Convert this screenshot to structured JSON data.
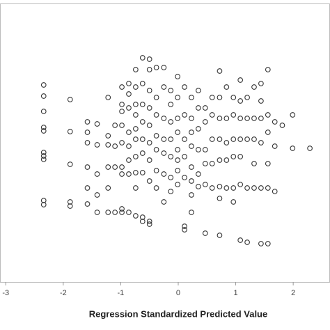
{
  "chart_data": {
    "type": "scatter",
    "x_label": "Regression Standardized Predicted Value",
    "xlim": [
      -3.1,
      2.64
    ],
    "xticks": [
      -3,
      -2,
      -1,
      0,
      1,
      2
    ],
    "ylim": [
      -4,
      4
    ],
    "color": "#333333",
    "x": [
      -2.34,
      -2.34,
      -2.34,
      -2.34,
      -2.34,
      -2.34,
      -2.34,
      -2.34,
      -2.34,
      -2.34,
      -1.88,
      -1.88,
      -1.88,
      -1.88,
      -1.88,
      -1.58,
      -1.58,
      -1.58,
      -1.58,
      -1.58,
      -1.58,
      -1.41,
      -1.41,
      -1.41,
      -1.41,
      -1.41,
      -1.22,
      -1.22,
      -1.22,
      -1.22,
      -1.22,
      -1.22,
      -1.1,
      -1.1,
      -1.1,
      -1.1,
      -0.98,
      -0.98,
      -0.98,
      -0.98,
      -0.98,
      -0.98,
      -0.98,
      -0.98,
      -0.98,
      -0.86,
      -0.86,
      -0.86,
      -0.86,
      -0.86,
      -0.86,
      -0.86,
      -0.86,
      -0.74,
      -0.74,
      -0.74,
      -0.74,
      -0.74,
      -0.74,
      -0.74,
      -0.74,
      -0.74,
      -0.74,
      -0.62,
      -0.62,
      -0.62,
      -0.62,
      -0.62,
      -0.62,
      -0.62,
      -0.62,
      -0.62,
      -0.5,
      -0.5,
      -0.5,
      -0.5,
      -0.5,
      -0.5,
      -0.5,
      -0.5,
      -0.5,
      -0.5,
      -0.38,
      -0.38,
      -0.38,
      -0.38,
      -0.38,
      -0.38,
      -0.38,
      -0.25,
      -0.25,
      -0.25,
      -0.25,
      -0.25,
      -0.25,
      -0.25,
      -0.13,
      -0.13,
      -0.13,
      -0.13,
      -0.13,
      -0.13,
      -0.13,
      -0.01,
      -0.01,
      -0.01,
      -0.01,
      -0.01,
      -0.01,
      -0.01,
      -0.01,
      0.11,
      0.11,
      0.11,
      0.11,
      0.11,
      0.11,
      0.11,
      0.23,
      0.23,
      0.23,
      0.23,
      0.23,
      0.23,
      0.23,
      0.23,
      0.35,
      0.35,
      0.35,
      0.35,
      0.35,
      0.35,
      0.47,
      0.47,
      0.47,
      0.47,
      0.47,
      0.47,
      0.59,
      0.59,
      0.59,
      0.59,
      0.59,
      0.72,
      0.72,
      0.72,
      0.72,
      0.72,
      0.72,
      0.72,
      0.72,
      0.84,
      0.84,
      0.84,
      0.84,
      0.84,
      0.96,
      0.96,
      0.96,
      0.96,
      0.96,
      0.96,
      1.08,
      1.08,
      1.08,
      1.08,
      1.08,
      1.08,
      1.08,
      1.2,
      1.2,
      1.2,
      1.2,
      1.2,
      1.32,
      1.32,
      1.32,
      1.32,
      1.32,
      1.44,
      1.44,
      1.44,
      1.44,
      1.44,
      1.44,
      1.56,
      1.56,
      1.56,
      1.56,
      1.56,
      1.56,
      1.68,
      1.68,
      1.68,
      1.81,
      1.99,
      1.99,
      2.29
    ],
    "values": [
      1.66,
      1.34,
      0.9,
      0.44,
      0.34,
      -0.28,
      -0.38,
      -0.48,
      -1.66,
      -1.78,
      1.24,
      0.32,
      -0.62,
      -1.7,
      -1.82,
      0.6,
      0.3,
      0,
      -0.7,
      -1.3,
      -1.76,
      0.54,
      -0.06,
      -0.9,
      -1.5,
      -2,
      1.3,
      0.2,
      -0.06,
      -0.7,
      -1.3,
      -2,
      0.5,
      -0.1,
      -0.7,
      -2,
      1.6,
      1.1,
      0.9,
      0.5,
      0,
      -0.7,
      -0.9,
      -1.9,
      -2,
      1.7,
      1.4,
      1,
      0.3,
      -0.1,
      -0.5,
      -0.9,
      -2,
      2.1,
      1.6,
      1.1,
      0.8,
      0.4,
      0.1,
      -0.4,
      -0.86,
      -1.3,
      -2.1,
      2.44,
      1.7,
      1.1,
      0.6,
      0.1,
      -0.3,
      -0.86,
      -2.14,
      -2.26,
      2.4,
      2.1,
      1.5,
      1,
      0.5,
      0,
      -0.5,
      -1.1,
      -2.26,
      -2.34,
      2.16,
      1.3,
      0.8,
      0.2,
      -0.2,
      -0.8,
      -1.3,
      2.16,
      1.6,
      0.7,
      0.1,
      -0.3,
      -0.9,
      -1.7,
      1.5,
      1.1,
      0.6,
      0.1,
      -0.4,
      -1,
      -1.4,
      1.9,
      1.3,
      0.7,
      0.3,
      -0.2,
      -0.5,
      -0.8,
      -1.2,
      1.6,
      0.8,
      0.1,
      -0.4,
      -1,
      -2.4,
      -2.5,
      1.3,
      0.7,
      0.3,
      -0.1,
      -0.7,
      -1.1,
      -1.5,
      -2,
      1.5,
      1,
      0.4,
      -0.2,
      -0.9,
      -1.26,
      1,
      0.6,
      -0.2,
      -0.6,
      -1.2,
      -2.6,
      1.3,
      0.8,
      0.1,
      -0.6,
      -1.3,
      2.06,
      1.3,
      0.7,
      0.1,
      -0.5,
      -1.26,
      -1.6,
      -2.66,
      1.6,
      0.7,
      0,
      -0.5,
      -1.3,
      1.3,
      0.8,
      0.1,
      -0.4,
      -1.3,
      -1.7,
      1.8,
      1.2,
      0.7,
      0.1,
      -0.4,
      -1.2,
      -2.8,
      1.3,
      0.7,
      0.1,
      -1.3,
      -2.86,
      1.6,
      0.7,
      0.1,
      -0.6,
      -1.3,
      1.7,
      1.2,
      0.7,
      0,
      -1.3,
      -2.9,
      2.1,
      0.8,
      0.3,
      -0.6,
      -1.3,
      -2.9,
      0.6,
      -0.1,
      -1.4,
      0.5,
      0.8,
      -0.16,
      -0.16
    ]
  }
}
